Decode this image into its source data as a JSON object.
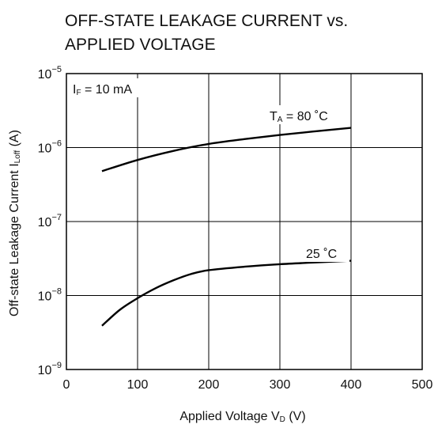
{
  "chart_data": {
    "type": "line",
    "title": [
      "OFF-STATE LEAKAGE CURRENT vs.",
      "APPLIED VOLTAGE"
    ],
    "xlabel": {
      "main": "Applied Voltage  V",
      "sub": "D",
      "unit": " (V)"
    },
    "ylabel": {
      "main": "Off-state Leakage Current  I",
      "sub": "Loff",
      "unit": " (A)"
    },
    "x_ticks": [
      "0",
      "100",
      "200",
      "300",
      "400",
      "500"
    ],
    "y_ticks": [
      {
        "base": "10",
        "exp": "−9"
      },
      {
        "base": "10",
        "exp": "−8"
      },
      {
        "base": "10",
        "exp": "−7"
      },
      {
        "base": "10",
        "exp": "−6"
      },
      {
        "base": "10",
        "exp": "−5"
      }
    ],
    "xlim": [
      0,
      500
    ],
    "ylim": [
      1e-09,
      1e-05
    ],
    "y_scale": "log",
    "grid": true,
    "condition": {
      "pre": "I",
      "sub": "F",
      "post": " = 10 mA"
    },
    "series": [
      {
        "name": {
          "pre": "T",
          "sub": "A",
          "post": " = 80 ˚C"
        },
        "x": [
          50,
          100,
          150,
          200,
          250,
          300,
          350,
          400
        ],
        "y": [
          4.8e-07,
          6.8e-07,
          9e-07,
          1.12e-06,
          1.3e-06,
          1.48e-06,
          1.66e-06,
          1.85e-06
        ]
      },
      {
        "name": {
          "pre": "",
          "sub": "",
          "post": "25 ˚C"
        },
        "x": [
          50,
          75,
          100,
          125,
          150,
          175,
          200,
          250,
          300,
          350,
          400
        ],
        "y": [
          3.9e-09,
          6.4e-09,
          9.2e-09,
          1.25e-08,
          1.6e-08,
          1.95e-08,
          2.2e-08,
          2.45e-08,
          2.65e-08,
          2.8e-08,
          2.95e-08
        ]
      }
    ]
  }
}
